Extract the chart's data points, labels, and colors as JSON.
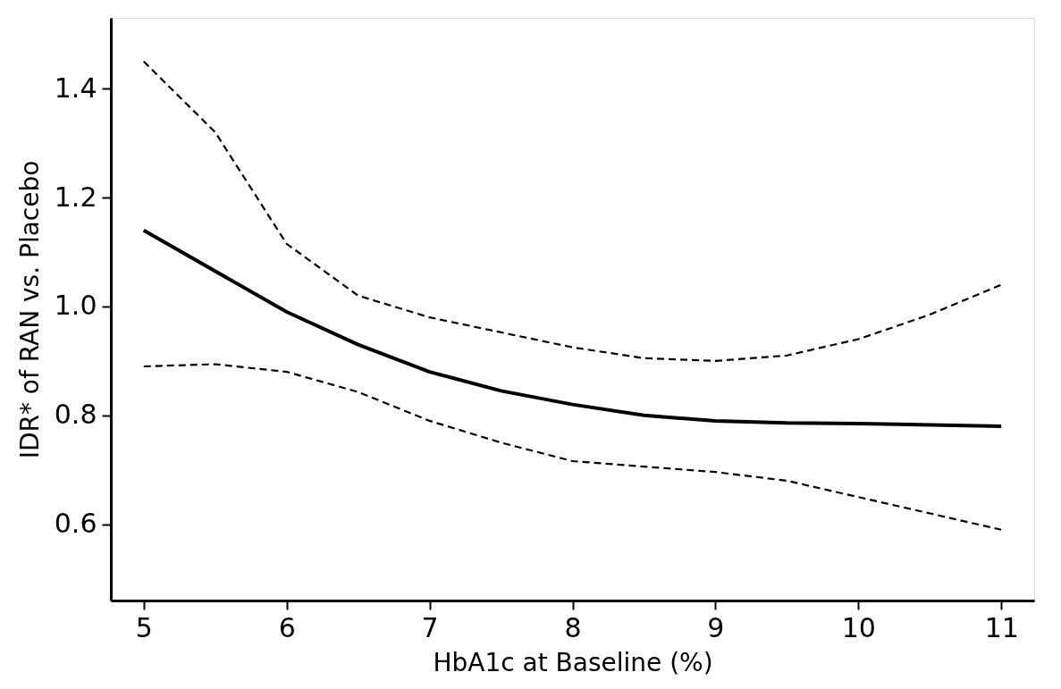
{
  "chart_data": {
    "type": "line",
    "xlabel": "HbA1c at Baseline (%)",
    "ylabel": "IDR* of RAN vs. Placebo",
    "xlim": [
      4.77,
      11.23
    ],
    "ylim": [
      0.46,
      1.53
    ],
    "xticks": [
      5,
      6,
      7,
      8,
      9,
      10,
      11
    ],
    "yticks": [
      0.6,
      0.8,
      {
        "value": 1.0,
        "label": "1.0"
      },
      1.2,
      1.4
    ],
    "grid": false,
    "marker": "none",
    "series": [
      {
        "color": "#000000",
        "line_style": "solid",
        "x": [
          5,
          6,
          6.5,
          7,
          7.5,
          8,
          8.5,
          9,
          9.5,
          10,
          11
        ],
        "values": [
          1.14,
          0.99,
          0.93,
          0.88,
          0.845,
          0.82,
          0.8,
          0.79,
          0.786,
          0.785,
          0.78
        ]
      },
      {
        "color": "#000000",
        "line_style": "dashed",
        "x": [
          5,
          5.5,
          6,
          6.5,
          7,
          8,
          8.5,
          9,
          9.5,
          10,
          10.5,
          11
        ],
        "values": [
          1.45,
          1.32,
          1.115,
          1.02,
          0.98,
          0.925,
          0.905,
          0.9,
          0.91,
          0.94,
          0.985,
          1.04
        ]
      },
      {
        "color": "#000000",
        "line_style": "dashed",
        "x": [
          5,
          5.5,
          6,
          6.5,
          7,
          7.5,
          8,
          8.5,
          9,
          9.5,
          10,
          10.5,
          11
        ],
        "values": [
          0.89,
          0.894,
          0.88,
          0.843,
          0.79,
          0.75,
          0.716,
          0.706,
          0.696,
          0.68,
          0.65,
          0.62,
          0.59
        ]
      }
    ]
  }
}
